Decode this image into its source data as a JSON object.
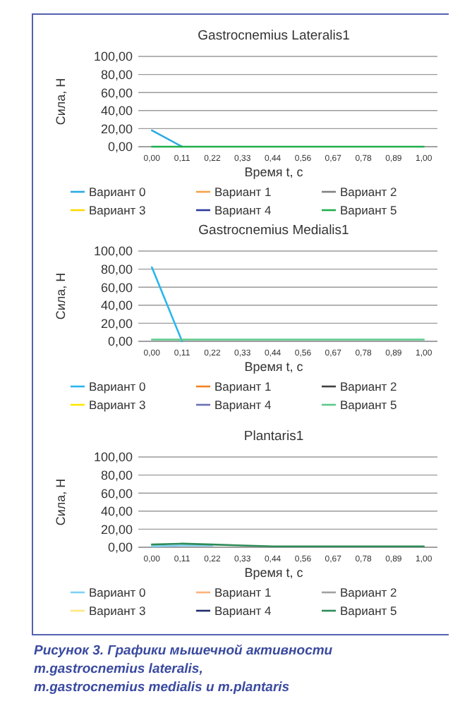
{
  "chart_data": [
    {
      "type": "line",
      "title": "Gastrocnemius Lateralis1",
      "xlabel": "Время t, с",
      "ylabel": "Сила, Н",
      "categories": [
        "0,00",
        "0,11",
        "0,22",
        "0,33",
        "0,44",
        "0,56",
        "0,67",
        "0,78",
        "0,89",
        "1,00"
      ],
      "ylim": [
        0,
        100
      ],
      "yticks": [
        {
          "value": 0,
          "label": "0,00"
        },
        {
          "value": 20,
          "label": "20,00"
        },
        {
          "value": 40,
          "label": "40,00"
        },
        {
          "value": 60,
          "label": "60,00"
        },
        {
          "value": 80,
          "label": "80,00"
        },
        {
          "value": 100,
          "label": "100,00"
        }
      ],
      "grid": "y",
      "legend": "bottom",
      "series": [
        {
          "name": "Вариант 0",
          "color": "#29abe2",
          "values": [
            18,
            0,
            null,
            null,
            null,
            null,
            null,
            null,
            null,
            null
          ]
        },
        {
          "name": "Вариант 1",
          "color": "#f7a24a",
          "values": [
            null,
            null,
            null,
            null,
            null,
            null,
            null,
            null,
            null,
            null
          ]
        },
        {
          "name": "Вариант 2",
          "color": "#808080",
          "values": [
            null,
            null,
            null,
            null,
            null,
            null,
            null,
            null,
            null,
            null
          ]
        },
        {
          "name": "Вариант 3",
          "color": "#ffd700",
          "values": [
            null,
            null,
            null,
            null,
            null,
            null,
            null,
            null,
            null,
            null
          ]
        },
        {
          "name": "Вариант 4",
          "color": "#2b3a9b",
          "values": [
            null,
            null,
            null,
            null,
            null,
            null,
            null,
            null,
            null,
            null
          ]
        },
        {
          "name": "Вариант 5",
          "color": "#1fae4a",
          "values": [
            0,
            0,
            0,
            0,
            0,
            0,
            0,
            0,
            0,
            0
          ]
        }
      ]
    },
    {
      "type": "line",
      "title": "Gastrocnemius Medialis1",
      "xlabel": "Время t, с",
      "ylabel": "Сила, Н",
      "categories": [
        "0,00",
        "0,11",
        "0,22",
        "0,33",
        "0,44",
        "0,56",
        "0,67",
        "0,78",
        "0,89",
        "1,00"
      ],
      "ylim": [
        0,
        100
      ],
      "yticks": [
        {
          "value": 0,
          "label": "0,00"
        },
        {
          "value": 20,
          "label": "20,00"
        },
        {
          "value": 40,
          "label": "40,00"
        },
        {
          "value": 60,
          "label": "60,00"
        },
        {
          "value": 80,
          "label": "80,00"
        },
        {
          "value": 100,
          "label": "100,00"
        }
      ],
      "grid": "y",
      "legend": "bottom",
      "series": [
        {
          "name": "Вариант 0",
          "color": "#29b6f0",
          "values": [
            82,
            0,
            null,
            null,
            null,
            null,
            null,
            null,
            null,
            null
          ]
        },
        {
          "name": "Вариант 1",
          "color": "#f58220",
          "values": [
            null,
            null,
            null,
            null,
            null,
            null,
            null,
            null,
            null,
            null
          ]
        },
        {
          "name": "Вариант 2",
          "color": "#404040",
          "values": [
            null,
            null,
            null,
            null,
            null,
            null,
            null,
            null,
            null,
            null
          ]
        },
        {
          "name": "Вариант 3",
          "color": "#ffe600",
          "values": [
            null,
            null,
            null,
            null,
            null,
            null,
            null,
            null,
            null,
            null
          ]
        },
        {
          "name": "Вариант 4",
          "color": "#6a6fb5",
          "values": [
            null,
            null,
            null,
            null,
            null,
            null,
            null,
            null,
            null,
            null
          ]
        },
        {
          "name": "Вариант 5",
          "color": "#5cc98a",
          "values": [
            2,
            2,
            2,
            2,
            2,
            2,
            2,
            2,
            2,
            2
          ]
        }
      ]
    },
    {
      "type": "line",
      "title": "Plantaris1",
      "xlabel": "Время t, с",
      "ylabel": "Сила, Н",
      "categories": [
        "0,00",
        "0,11",
        "0,22",
        "0,33",
        "0,44",
        "0,56",
        "0,67",
        "0,78",
        "0,89",
        "1,00"
      ],
      "ylim": [
        0,
        100
      ],
      "yticks": [
        {
          "value": 0,
          "label": "0,00"
        },
        {
          "value": 20,
          "label": "20,00"
        },
        {
          "value": 40,
          "label": "40,00"
        },
        {
          "value": 60,
          "label": "60,00"
        },
        {
          "value": 80,
          "label": "80,00"
        },
        {
          "value": 100,
          "label": "100,00"
        }
      ],
      "grid": "y",
      "legend": "bottom",
      "annotations": [
        "Рисунок 3. Графики мышечной активности m.gastrocnemius lateralis, m.gastrocnemius medialis и m.plantaris"
      ],
      "series": [
        {
          "name": "Вариант 0",
          "color": "#7fd0f5",
          "values": [
            1,
            2,
            2,
            null,
            null,
            null,
            null,
            null,
            null,
            null
          ]
        },
        {
          "name": "Вариант 1",
          "color": "#ffb27a",
          "values": [
            null,
            null,
            null,
            null,
            null,
            null,
            null,
            null,
            null,
            null
          ]
        },
        {
          "name": "Вариант 2",
          "color": "#a0a0a0",
          "values": [
            null,
            null,
            null,
            null,
            null,
            null,
            null,
            null,
            null,
            null
          ]
        },
        {
          "name": "Вариант 3",
          "color": "#ffe680",
          "values": [
            null,
            null,
            null,
            null,
            null,
            null,
            null,
            null,
            null,
            null
          ]
        },
        {
          "name": "Вариант 4",
          "color": "#1f2a6b",
          "values": [
            null,
            null,
            null,
            null,
            null,
            null,
            null,
            null,
            null,
            null
          ]
        },
        {
          "name": "Вариант 5",
          "color": "#2e8b57",
          "values": [
            3,
            4,
            3,
            2,
            1,
            1,
            1,
            1,
            1,
            1
          ]
        }
      ]
    }
  ]
}
